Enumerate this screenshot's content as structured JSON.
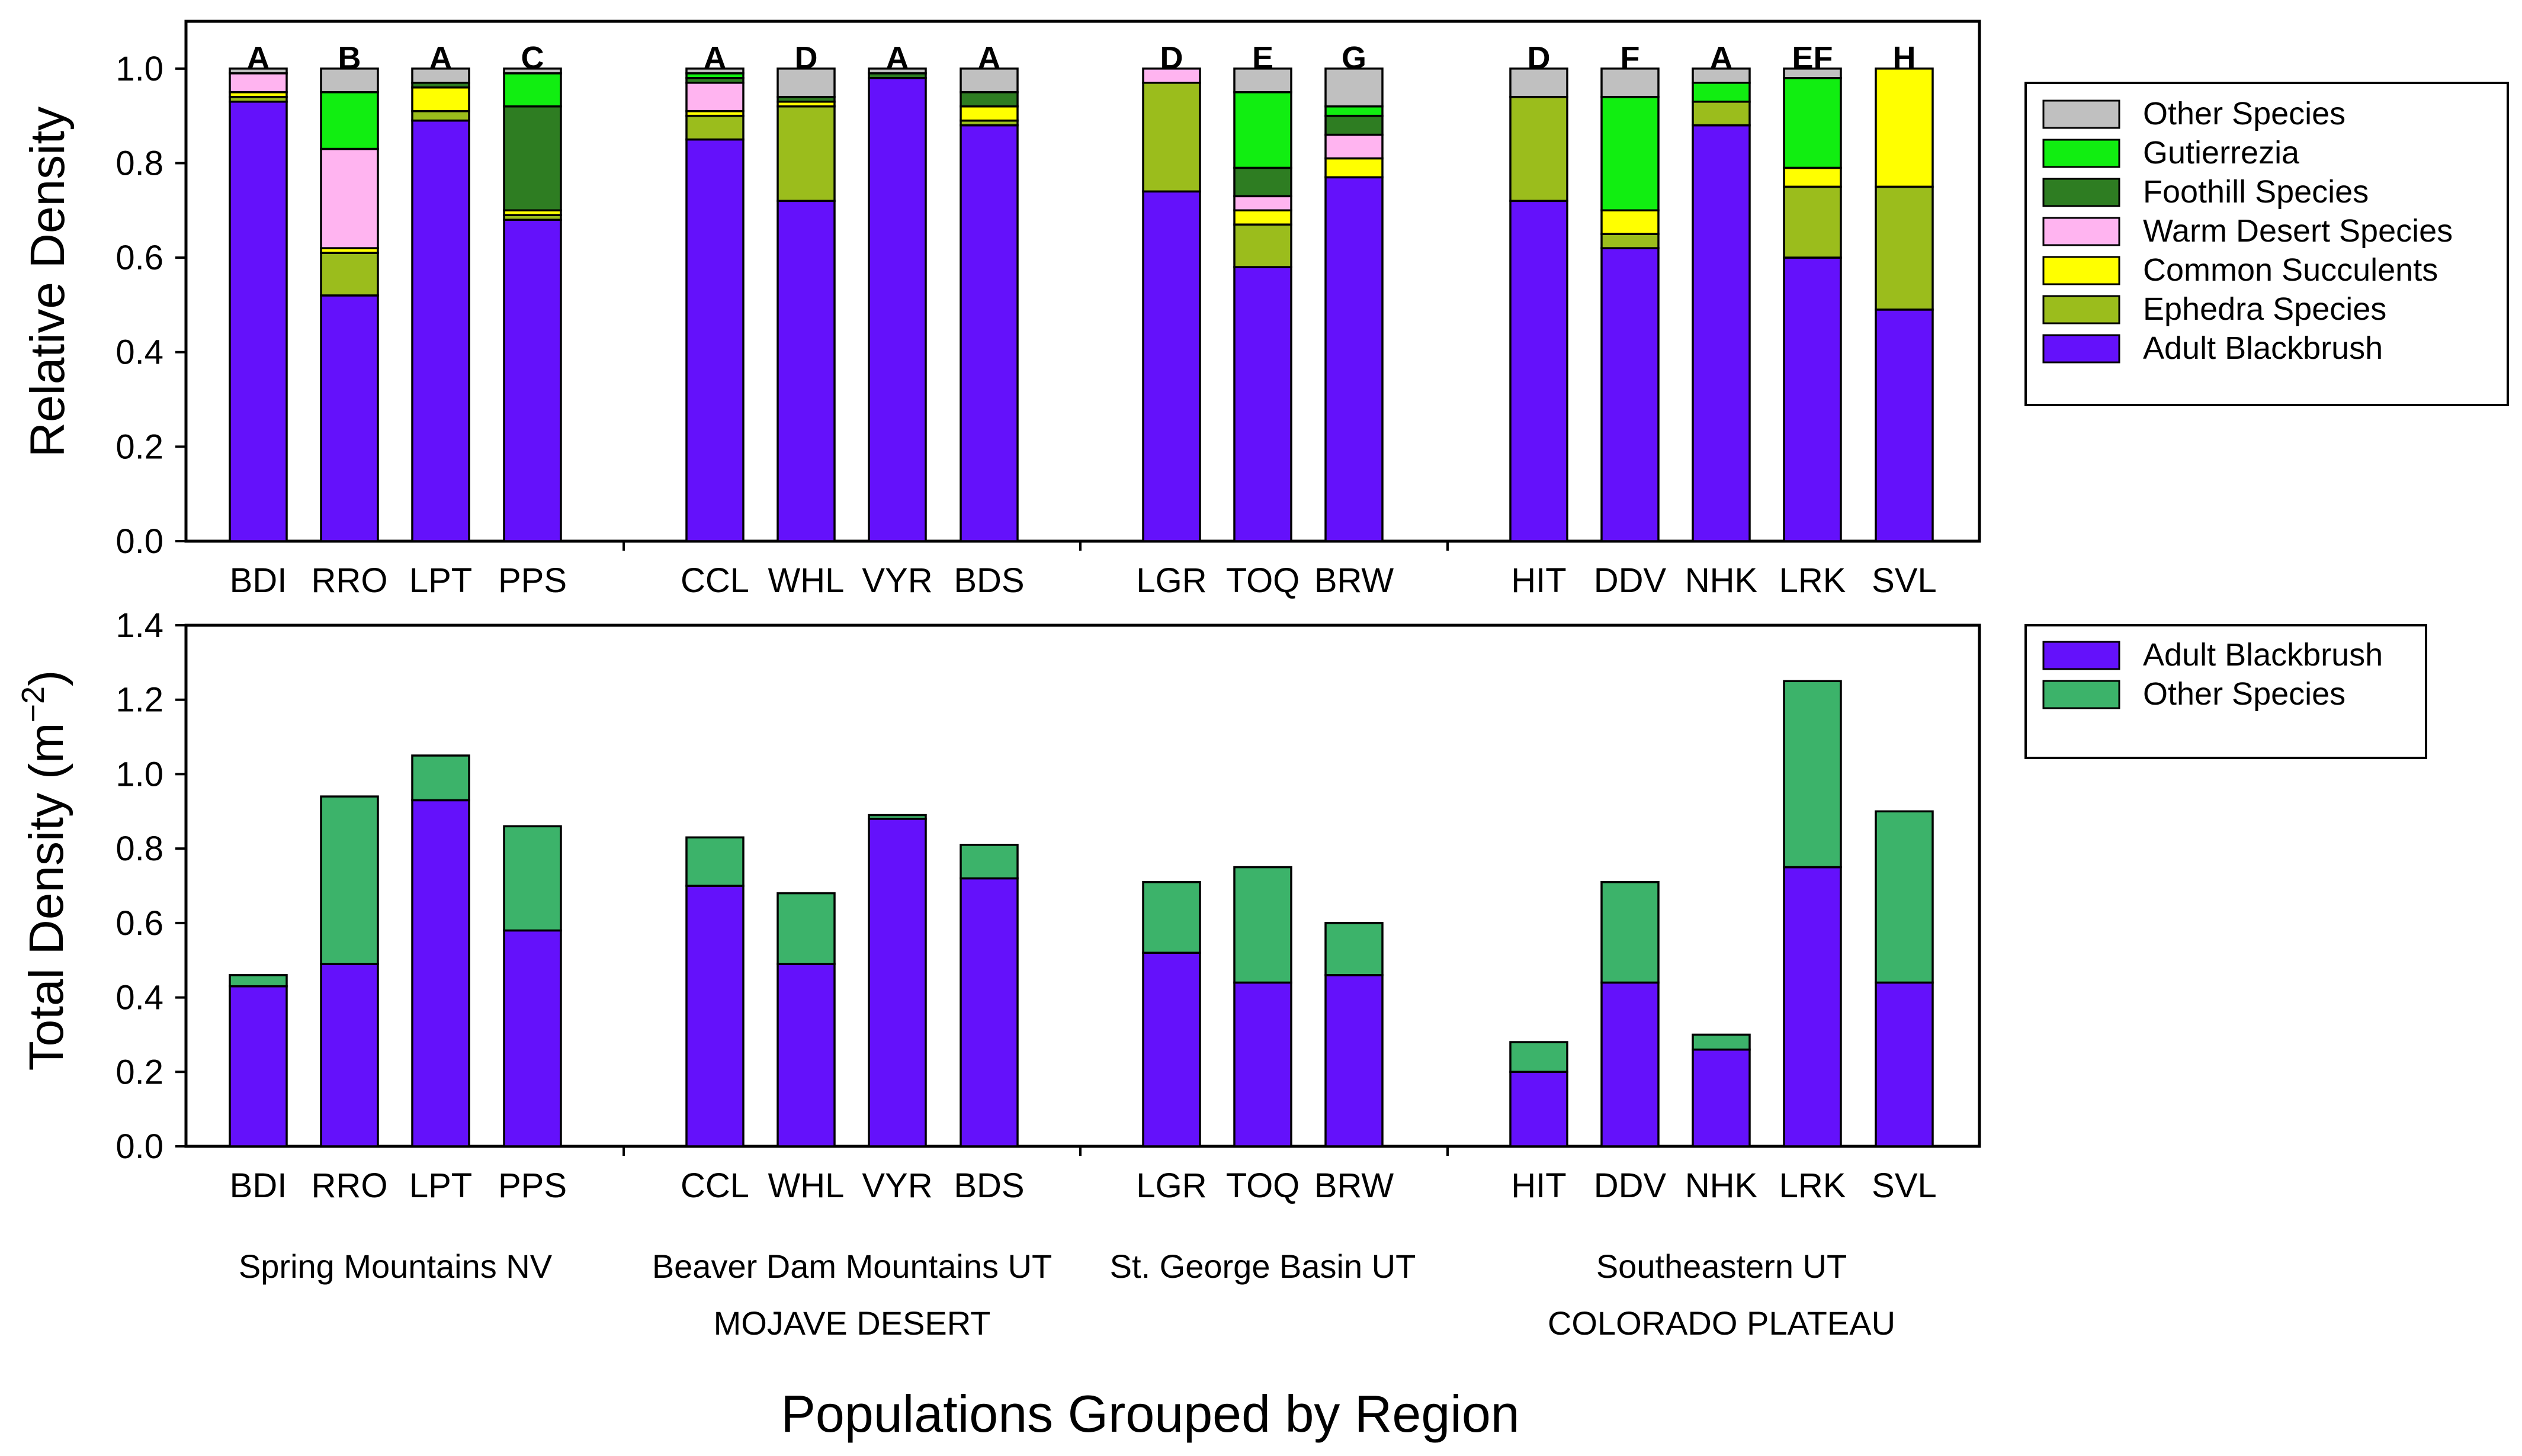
{
  "colors": {
    "Adult Blackbrush": "#6411fb",
    "Ephedra Species": "#9bbd1c",
    "Common Succulents": "#ffff00",
    "Warm Desert Species": "#ffb4f0",
    "Foothill Species": "#2e7d22",
    "Gutierrezia": "#11ee11",
    "Other Species": "#c0c0c0",
    "Other Species (total)": "#3cb36a"
  },
  "x_title": "Populations Grouped by Region",
  "regions": [
    {
      "label": "Spring Mountains NV",
      "sites": [
        0,
        3
      ]
    },
    {
      "label": "Beaver Dam Mountains UT",
      "sites": [
        4,
        7
      ]
    },
    {
      "label": "St. George Basin UT",
      "sites": [
        8,
        10
      ]
    },
    {
      "label": "Southeastern UT",
      "sites": [
        11,
        15
      ]
    }
  ],
  "super_regions": [
    {
      "label": "MOJAVE DESERT",
      "sites": [
        4,
        7
      ]
    },
    {
      "label": "COLORADO PLATEAU",
      "sites": [
        11,
        15
      ]
    }
  ],
  "chart_data": [
    {
      "type": "bar",
      "stacked": true,
      "ylabel": "Relative Density",
      "ylim": [
        0,
        1.1
      ],
      "yticks": [
        "0.0",
        "0.2",
        "0.4",
        "0.6",
        "0.8",
        "1.0"
      ],
      "legend_position": "right",
      "legend": [
        "Other Species",
        "Gutierrezia",
        "Foothill Species",
        "Warm Desert Species",
        "Common Succulents",
        "Ephedra Species",
        "Adult Blackbrush"
      ],
      "categories": [
        "BDI",
        "RRO",
        "LPT",
        "PPS",
        "CCL",
        "WHL",
        "VYR",
        "BDS",
        "LGR",
        "TOQ",
        "BRW",
        "HIT",
        "DDV",
        "NHK",
        "LRK",
        "SVL"
      ],
      "group_letters": [
        "A",
        "B",
        "A",
        "C",
        "A",
        "D",
        "A",
        "A",
        "D",
        "E",
        "G",
        "D",
        "F",
        "A",
        "EF",
        "H"
      ],
      "series": [
        {
          "name": "Adult Blackbrush",
          "values": [
            0.93,
            0.52,
            0.89,
            0.68,
            0.85,
            0.72,
            0.98,
            0.88,
            0.74,
            0.58,
            0.77,
            0.72,
            0.62,
            0.88,
            0.6,
            0.49
          ]
        },
        {
          "name": "Ephedra Species",
          "values": [
            0.01,
            0.09,
            0.02,
            0.01,
            0.05,
            0.2,
            0.0,
            0.01,
            0.23,
            0.09,
            0.0,
            0.22,
            0.03,
            0.05,
            0.15,
            0.26
          ]
        },
        {
          "name": "Common Succulents",
          "values": [
            0.01,
            0.01,
            0.05,
            0.01,
            0.01,
            0.01,
            0.0,
            0.03,
            0.0,
            0.03,
            0.04,
            0.0,
            0.05,
            0.0,
            0.04,
            0.25
          ]
        },
        {
          "name": "Warm Desert Species",
          "values": [
            0.04,
            0.21,
            0.0,
            0.0,
            0.06,
            0.0,
            0.0,
            0.0,
            0.03,
            0.03,
            0.05,
            0.0,
            0.0,
            0.0,
            0.0,
            0.0
          ]
        },
        {
          "name": "Foothill Species",
          "values": [
            0.0,
            0.0,
            0.01,
            0.22,
            0.01,
            0.01,
            0.01,
            0.03,
            0.0,
            0.06,
            0.04,
            0.0,
            0.0,
            0.0,
            0.0,
            0.0
          ]
        },
        {
          "name": "Gutierrezia",
          "values": [
            0.0,
            0.12,
            0.0,
            0.07,
            0.01,
            0.0,
            0.0,
            0.0,
            0.0,
            0.16,
            0.02,
            0.0,
            0.24,
            0.04,
            0.19,
            0.0
          ]
        },
        {
          "name": "Other Species",
          "values": [
            0.01,
            0.05,
            0.03,
            0.01,
            0.01,
            0.06,
            0.01,
            0.05,
            0.0,
            0.05,
            0.08,
            0.06,
            0.06,
            0.03,
            0.02,
            0.0
          ]
        }
      ]
    },
    {
      "type": "bar",
      "stacked": true,
      "ylabel": "Total Density (m",
      "ylabel_sup": "−2",
      "ylabel_end": ")",
      "ylim": [
        0,
        1.4
      ],
      "yticks": [
        "0.0",
        "0.2",
        "0.4",
        "0.6",
        "0.8",
        "1.0",
        "1.2",
        "1.4"
      ],
      "legend_position": "right",
      "legend": [
        "Adult Blackbrush",
        "Other Species"
      ],
      "categories": [
        "BDI",
        "RRO",
        "LPT",
        "PPS",
        "CCL",
        "WHL",
        "VYR",
        "BDS",
        "LGR",
        "TOQ",
        "BRW",
        "HIT",
        "DDV",
        "NHK",
        "LRK",
        "SVL"
      ],
      "series": [
        {
          "name": "Adult Blackbrush",
          "values": [
            0.43,
            0.49,
            0.93,
            0.58,
            0.7,
            0.49,
            0.88,
            0.72,
            0.52,
            0.44,
            0.46,
            0.2,
            0.44,
            0.26,
            0.75,
            0.44
          ]
        },
        {
          "name": "Other Species",
          "values": [
            0.03,
            0.45,
            0.12,
            0.28,
            0.13,
            0.19,
            0.01,
            0.09,
            0.19,
            0.31,
            0.14,
            0.08,
            0.27,
            0.04,
            0.5,
            0.46
          ]
        }
      ]
    }
  ]
}
